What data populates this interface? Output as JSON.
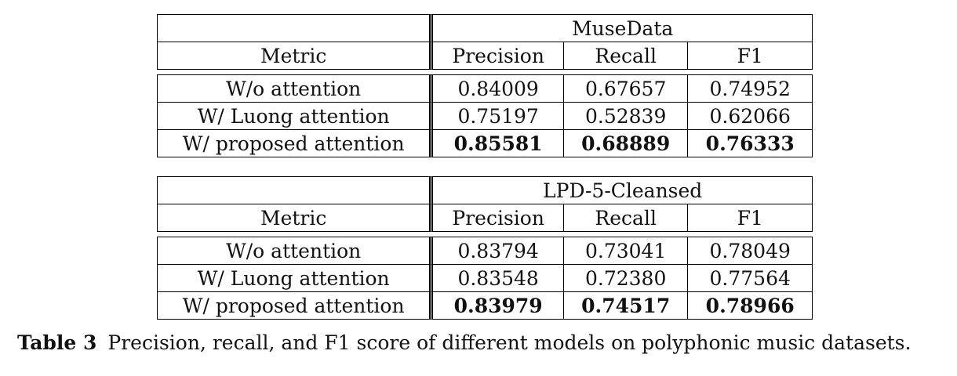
{
  "tables": [
    {
      "dataset": "MuseData",
      "metric_header": "Metric",
      "columns": [
        "Precision",
        "Recall",
        "F1"
      ],
      "rows": [
        {
          "model": "W/o attention",
          "values": [
            "0.84009",
            "0.67657",
            "0.74952"
          ],
          "bold": false
        },
        {
          "model": "W/ Luong attention",
          "values": [
            "0.75197",
            "0.52839",
            "0.62066"
          ],
          "bold": false
        },
        {
          "model": "W/ proposed attention",
          "values": [
            "0.85581",
            "0.68889",
            "0.76333"
          ],
          "bold": true
        }
      ]
    },
    {
      "dataset": "LPD-5-Cleansed",
      "metric_header": "Metric",
      "columns": [
        "Precision",
        "Recall",
        "F1"
      ],
      "rows": [
        {
          "model": "W/o attention",
          "values": [
            "0.83794",
            "0.73041",
            "0.78049"
          ],
          "bold": false
        },
        {
          "model": "W/ Luong attention",
          "values": [
            "0.83548",
            "0.72380",
            "0.77564"
          ],
          "bold": false
        },
        {
          "model": "W/ proposed attention",
          "values": [
            "0.83979",
            "0.74517",
            "0.78966"
          ],
          "bold": true
        }
      ]
    }
  ],
  "caption": {
    "label": "Table 3",
    "text": "Precision, recall, and F1 score of different models on polyphonic music datasets."
  }
}
